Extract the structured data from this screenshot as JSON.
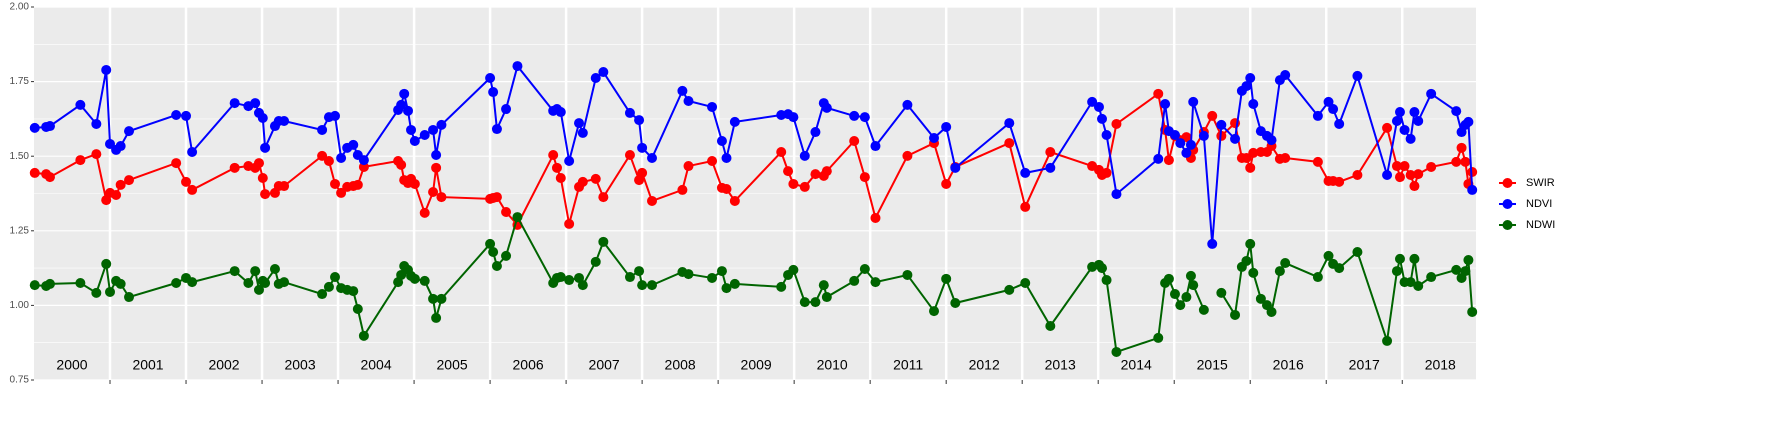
{
  "chart_data": {
    "type": "line",
    "x": [
      2000.01,
      2000.16,
      2000.21,
      2000.61,
      2000.82,
      2000.95,
      2001.0,
      2001.08,
      2001.14,
      2001.25,
      2001.87,
      2002.0,
      2002.08,
      2002.64,
      2002.82,
      2002.91,
      2002.96,
      2003.01,
      2003.04,
      2003.17,
      2003.22,
      2003.29,
      2003.79,
      2003.88,
      2003.96,
      2004.04,
      2004.12,
      2004.2,
      2004.26,
      2004.34,
      2004.79,
      2004.83,
      2004.87,
      2004.92,
      2004.96,
      2005.01,
      2005.14,
      2005.25,
      2005.29,
      2005.36,
      2006.0,
      2006.04,
      2006.09,
      2006.21,
      2006.36,
      2006.83,
      2006.88,
      2006.93,
      2007.04,
      2007.17,
      2007.22,
      2007.39,
      2007.49,
      2007.84,
      2007.96,
      2008.0,
      2008.13,
      2008.53,
      2008.61,
      2008.92,
      2009.05,
      2009.11,
      2009.22,
      2009.83,
      2009.92,
      2009.99,
      2010.14,
      2010.28,
      2010.39,
      2010.43,
      2010.79,
      2010.93,
      2011.07,
      2011.49,
      2011.84,
      2012.0,
      2012.12,
      2012.83,
      2013.04,
      2013.37,
      2013.92,
      2014.01,
      2014.05,
      2014.11,
      2014.24,
      2014.79,
      2014.88,
      2014.93,
      2015.01,
      2015.08,
      2015.16,
      2015.22,
      2015.25,
      2015.39,
      2015.5,
      2015.62,
      2015.8,
      2015.89,
      2015.95,
      2016.0,
      2016.04,
      2016.14,
      2016.22,
      2016.28,
      2016.39,
      2016.46,
      2016.89,
      2017.03,
      2017.09,
      2017.17,
      2017.41,
      2017.8,
      2017.93,
      2017.97,
      2018.03,
      2018.11,
      2018.16,
      2018.21,
      2018.38,
      2018.71,
      2018.78,
      2018.83,
      2018.87,
      2018.92
    ],
    "series": [
      {
        "name": "SWIR",
        "color": "#ff0000",
        "values": [
          1.444,
          1.44,
          1.43,
          1.487,
          1.507,
          1.353,
          1.377,
          1.37,
          1.404,
          1.42,
          1.477,
          1.414,
          1.387,
          1.461,
          1.467,
          1.461,
          1.477,
          1.427,
          1.373,
          1.377,
          1.4,
          1.4,
          1.501,
          1.484,
          1.407,
          1.377,
          1.397,
          1.4,
          1.404,
          1.464,
          1.484,
          1.471,
          1.42,
          1.41,
          1.424,
          1.407,
          1.31,
          1.38,
          1.461,
          1.363,
          1.357,
          1.36,
          1.363,
          1.313,
          1.27,
          1.504,
          1.461,
          1.427,
          1.273,
          1.397,
          1.414,
          1.424,
          1.363,
          1.504,
          1.42,
          1.444,
          1.35,
          1.387,
          1.467,
          1.484,
          1.394,
          1.39,
          1.35,
          1.514,
          1.45,
          1.407,
          1.397,
          1.44,
          1.434,
          1.45,
          1.551,
          1.43,
          1.293,
          1.501,
          1.544,
          1.407,
          1.464,
          1.544,
          1.33,
          1.514,
          1.467,
          1.454,
          1.437,
          1.444,
          1.608,
          1.709,
          1.588,
          1.487,
          1.568,
          1.554,
          1.564,
          1.494,
          1.521,
          1.581,
          1.635,
          1.568,
          1.611,
          1.494,
          1.494,
          1.461,
          1.511,
          1.514,
          1.514,
          1.534,
          1.491,
          1.494,
          1.481,
          1.417,
          1.417,
          1.414,
          1.437,
          1.595,
          1.467,
          1.43,
          1.467,
          1.437,
          1.4,
          1.44,
          1.464,
          1.481,
          1.528,
          1.481,
          1.407,
          1.447
        ]
      },
      {
        "name": "NDVI",
        "color": "#0000ff",
        "values": [
          1.595,
          1.598,
          1.601,
          1.672,
          1.608,
          1.789,
          1.541,
          1.521,
          1.534,
          1.584,
          1.638,
          1.635,
          1.514,
          1.678,
          1.668,
          1.678,
          1.645,
          1.628,
          1.528,
          1.601,
          1.618,
          1.618,
          1.588,
          1.631,
          1.635,
          1.494,
          1.528,
          1.538,
          1.504,
          1.487,
          1.655,
          1.672,
          1.709,
          1.652,
          1.588,
          1.551,
          1.571,
          1.588,
          1.504,
          1.605,
          1.762,
          1.715,
          1.591,
          1.658,
          1.802,
          1.652,
          1.658,
          1.648,
          1.484,
          1.611,
          1.578,
          1.762,
          1.782,
          1.645,
          1.621,
          1.528,
          1.494,
          1.719,
          1.685,
          1.665,
          1.551,
          1.494,
          1.615,
          1.638,
          1.641,
          1.631,
          1.501,
          1.581,
          1.678,
          1.662,
          1.635,
          1.631,
          1.534,
          1.672,
          1.561,
          1.598,
          1.461,
          1.611,
          1.444,
          1.461,
          1.682,
          1.665,
          1.625,
          1.571,
          1.373,
          1.491,
          1.675,
          1.584,
          1.571,
          1.544,
          1.511,
          1.538,
          1.682,
          1.568,
          1.206,
          1.605,
          1.558,
          1.719,
          1.735,
          1.762,
          1.675,
          1.584,
          1.568,
          1.554,
          1.755,
          1.772,
          1.635,
          1.682,
          1.658,
          1.608,
          1.769,
          1.437,
          1.618,
          1.648,
          1.588,
          1.558,
          1.648,
          1.618,
          1.709,
          1.651,
          1.581,
          1.605,
          1.615,
          1.387
        ]
      },
      {
        "name": "NDWI",
        "color": "#006400",
        "values": [
          1.068,
          1.065,
          1.072,
          1.075,
          1.042,
          1.139,
          1.045,
          1.082,
          1.072,
          1.028,
          1.075,
          1.092,
          1.078,
          1.115,
          1.075,
          1.115,
          1.052,
          1.082,
          1.075,
          1.122,
          1.072,
          1.078,
          1.038,
          1.062,
          1.095,
          1.058,
          1.052,
          1.048,
          0.988,
          0.898,
          1.078,
          1.102,
          1.132,
          1.119,
          1.099,
          1.089,
          1.082,
          1.022,
          0.958,
          1.022,
          1.206,
          1.179,
          1.132,
          1.166,
          1.296,
          1.075,
          1.092,
          1.095,
          1.085,
          1.092,
          1.068,
          1.146,
          1.213,
          1.095,
          1.115,
          1.068,
          1.068,
          1.112,
          1.105,
          1.092,
          1.115,
          1.058,
          1.072,
          1.062,
          1.102,
          1.119,
          1.011,
          1.011,
          1.068,
          1.028,
          1.082,
          1.122,
          1.078,
          1.102,
          0.981,
          1.089,
          1.008,
          1.052,
          1.075,
          0.931,
          1.129,
          1.136,
          1.125,
          1.085,
          0.844,
          0.891,
          1.075,
          1.089,
          1.038,
          1.001,
          1.028,
          1.099,
          1.068,
          0.985,
          null,
          1.042,
          0.968,
          1.129,
          1.149,
          1.206,
          1.109,
          1.022,
          1.001,
          0.978,
          1.115,
          1.142,
          1.095,
          1.166,
          1.139,
          1.125,
          1.179,
          0.881,
          1.115,
          1.156,
          1.078,
          1.078,
          1.156,
          1.065,
          1.095,
          1.119,
          1.092,
          1.115,
          1.152,
          0.978
        ]
      }
    ],
    "xlim": [
      2000,
      2018.97
    ],
    "xticks": [
      2001,
      2002,
      2003,
      2004,
      2005,
      2006,
      2007,
      2008,
      2009,
      2010,
      2011,
      2012,
      2013,
      2014,
      2015,
      2016,
      2017,
      2018
    ],
    "year_labels": [
      {
        "value": 2000.5,
        "label": "2000"
      },
      {
        "value": 2001.5,
        "label": "2001"
      },
      {
        "value": 2002.5,
        "label": "2002"
      },
      {
        "value": 2003.5,
        "label": "2003"
      },
      {
        "value": 2004.5,
        "label": "2004"
      },
      {
        "value": 2005.5,
        "label": "2005"
      },
      {
        "value": 2006.5,
        "label": "2006"
      },
      {
        "value": 2007.5,
        "label": "2007"
      },
      {
        "value": 2008.5,
        "label": "2008"
      },
      {
        "value": 2009.5,
        "label": "2009"
      },
      {
        "value": 2010.5,
        "label": "2010"
      },
      {
        "value": 2011.5,
        "label": "2011"
      },
      {
        "value": 2012.5,
        "label": "2012"
      },
      {
        "value": 2013.5,
        "label": "2013"
      },
      {
        "value": 2014.5,
        "label": "2014"
      },
      {
        "value": 2015.5,
        "label": "2015"
      },
      {
        "value": 2016.5,
        "label": "2016"
      },
      {
        "value": 2017.5,
        "label": "2017"
      },
      {
        "value": 2018.5,
        "label": "2018"
      }
    ],
    "ylim": [
      0.75,
      2.0
    ],
    "yticks": [
      {
        "value": 0.75,
        "label": "0.75"
      },
      {
        "value": 1.0,
        "label": "1.00"
      },
      {
        "value": 1.25,
        "label": "1.25"
      },
      {
        "value": 1.5,
        "label": "1.50"
      },
      {
        "value": 1.75,
        "label": "1.75"
      },
      {
        "value": 2.0,
        "label": "2.00"
      }
    ],
    "grid": true,
    "legend": "right"
  }
}
